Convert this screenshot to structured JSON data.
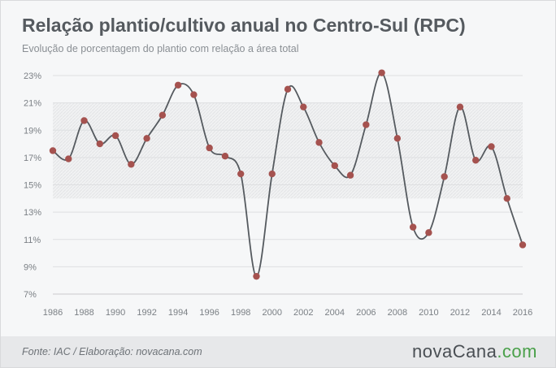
{
  "header": {
    "title": "Relação plantio/cultivo anual no Centro-Sul (RPC)",
    "subtitle": "Evolução de porcentagem do plantio com relação a área total"
  },
  "footer": {
    "source": "Fonte: IAC / Elaboração: novacana.com",
    "logo_main": "nova",
    "logo_brand": "Cana",
    "logo_suffix": ".com"
  },
  "colors": {
    "line": "#555a5f",
    "marker": "#a5524f",
    "band": "#e3e4e6",
    "grid": "#dedfe1"
  },
  "chart_data": {
    "type": "line",
    "title": "Relação plantio/cultivo anual no Centro-Sul (RPC)",
    "subtitle": "Evolução de porcentagem do plantio com relação a área total",
    "xlabel": "",
    "ylabel": "",
    "xlim": [
      1986,
      2016
    ],
    "ylim": [
      7,
      23
    ],
    "y_ticks": [
      "7%",
      "9%",
      "11%",
      "13%",
      "15%",
      "17%",
      "19%",
      "21%",
      "23%"
    ],
    "x_ticks": [
      "1986",
      "1988",
      "1990",
      "1992",
      "1994",
      "1996",
      "1998",
      "2000",
      "2002",
      "2004",
      "2006",
      "2008",
      "2010",
      "2012",
      "2014",
      "2016"
    ],
    "band": [
      14,
      21
    ],
    "grid": true,
    "series": [
      {
        "x": [
          1986,
          1987,
          1988,
          1989,
          1990,
          1991,
          1992,
          1993,
          1994,
          1995,
          1996,
          1997,
          1998,
          1999,
          2000,
          2001,
          2002,
          2003,
          2004,
          2005,
          2006,
          2007,
          2008,
          2009,
          2010,
          2011,
          2012,
          2013,
          2014,
          2015,
          2016
        ],
        "y": [
          17.5,
          16.9,
          19.7,
          18.0,
          18.6,
          16.5,
          18.4,
          20.1,
          22.3,
          21.6,
          17.7,
          17.1,
          15.8,
          8.3,
          15.8,
          22.0,
          20.7,
          18.1,
          16.4,
          15.7,
          19.4,
          23.2,
          18.4,
          11.9,
          11.5,
          15.6,
          20.7,
          16.8,
          17.8,
          14.0,
          10.6
        ]
      }
    ]
  }
}
